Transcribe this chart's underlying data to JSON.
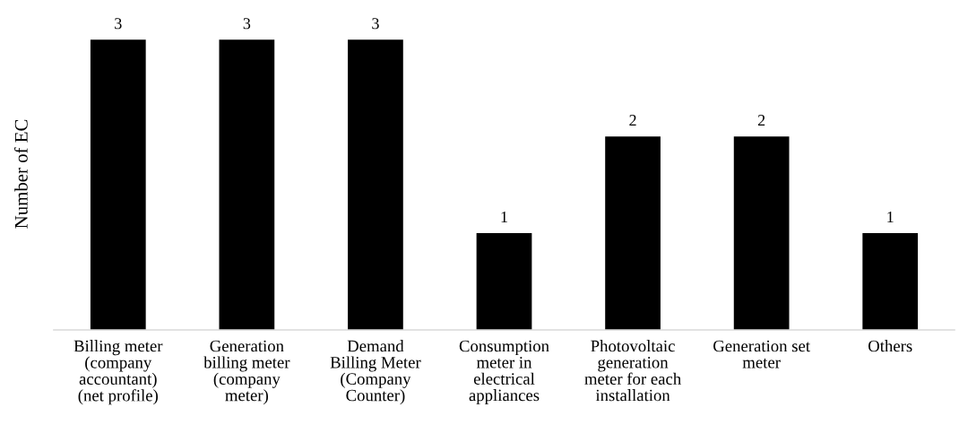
{
  "chart_data": {
    "type": "bar",
    "ylabel": "Number of EC",
    "categories": [
      "Billing meter\n(company\naccountant)\n(net profile)",
      "Generation\nbilling meter\n(company\nmeter)",
      "Demand\nBilling Meter\n(Company\nCounter)",
      "Consumption\nmeter in\nelectrical\nappliances",
      "Photovoltaic\ngeneration\nmeter for each\ninstallation",
      "Generation set\nmeter",
      "Others"
    ],
    "values": [
      3,
      3,
      3,
      1,
      2,
      2,
      1
    ],
    "color": "#000000",
    "data_labels": true,
    "grid": false,
    "legend": false
  }
}
